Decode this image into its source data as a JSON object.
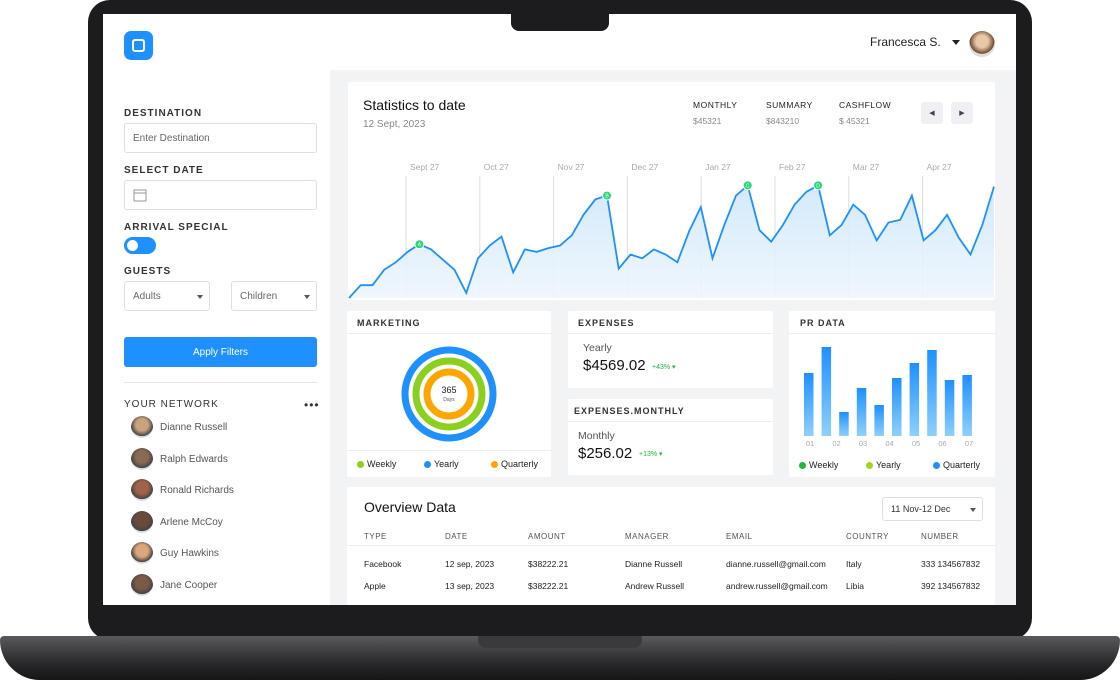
{
  "header": {
    "user": "Francesca S."
  },
  "filters": {
    "destination_label": "DESTINATION",
    "destination_placeholder": "Enter Destination",
    "date_label": "SELECT DATE",
    "arrival_label": "ARRIVAL SPECIAL",
    "guests_label": "GUESTS",
    "adults": "Adults",
    "children": "Children",
    "apply": "Apply Filters"
  },
  "network": {
    "title": "YOUR NETWORK",
    "people": [
      "Dianne Russell",
      "Ralph Edwards",
      "Ronald Richards",
      "Arlene McCoy",
      "Guy Hawkins",
      "Jane Cooper"
    ]
  },
  "statistics": {
    "title": "Statistics to date",
    "date": "12 Sept, 2023",
    "metrics": [
      {
        "label": "MONTHLY",
        "value": "$45321"
      },
      {
        "label": "SUMMARY",
        "value": "$843210"
      },
      {
        "label": "CASHFLOW",
        "value": "$ 45321"
      }
    ],
    "x_labels": [
      "Sept 27",
      "Oct 27",
      "Nov 27",
      "Dec 27",
      "Jan 27",
      "Feb 27",
      "Mar 27",
      "Apr 27"
    ],
    "ylim": [
      0,
      100
    ],
    "values": [
      0,
      10,
      10,
      22,
      28,
      36,
      42,
      38,
      30,
      22,
      4,
      31,
      41,
      48,
      20,
      38,
      36,
      39,
      41,
      49,
      65,
      77,
      80,
      23,
      34,
      31,
      38,
      34,
      28,
      52,
      71,
      31,
      57,
      80,
      88,
      53,
      44,
      57,
      73,
      83,
      88,
      49,
      57,
      73,
      65,
      45,
      59,
      61,
      80,
      45,
      53,
      65,
      47,
      34,
      57,
      87
    ],
    "markers": [
      {
        "index": 6,
        "label": "A"
      },
      {
        "index": 22,
        "label": "B"
      },
      {
        "index": 34,
        "label": "C"
      },
      {
        "index": 40,
        "label": "D"
      }
    ]
  },
  "marketing": {
    "title": "MARKETING",
    "center_value": "365",
    "center_label": "Days",
    "legend": [
      {
        "name": "Weekly",
        "color": "#8bd01f"
      },
      {
        "name": "Yearly",
        "color": "#1e90ff"
      },
      {
        "name": "Quarterly",
        "color": "#ffa500"
      }
    ]
  },
  "expenses": {
    "title": "EXPENSES",
    "period": "Yearly",
    "amount": "$4569.02",
    "change": "+43%"
  },
  "expenses_monthly": {
    "title": "EXPENSES.MONTHLY",
    "period": "Monthly",
    "amount": "$256.02",
    "change": "+13%"
  },
  "pr_data": {
    "title": "PR DATA",
    "ylim": [
      0,
      100
    ],
    "values": [
      63,
      89,
      24,
      48,
      31,
      58,
      73,
      86,
      56,
      61
    ],
    "x_labels": [
      "01",
      "02",
      "03",
      "04",
      "05",
      "06",
      "07"
    ],
    "legend": [
      {
        "name": "Weekly",
        "color": "#1fb53a"
      },
      {
        "name": "Yearly",
        "color": "#a3d32a"
      },
      {
        "name": "Quarterly",
        "color": "#1e90ff"
      }
    ]
  },
  "overview": {
    "title": "Overview Data",
    "range": "11 Nov-12 Dec",
    "columns": [
      "TYPE",
      "DATE",
      "AMOUNT",
      "MANAGER",
      "EMAIL",
      "COUNTRY",
      "NUMBER"
    ],
    "rows": [
      [
        "Facebook",
        "12 sep, 2023",
        "$38222.21",
        "Dianne Russell",
        "dianne.russell@gmail.com",
        "Italy",
        "333 134567832"
      ],
      [
        "Apple",
        "13 sep, 2023",
        "$38222.21",
        "Andrew Russell",
        "andrew.russell@gmail.com",
        "Libia",
        "392 134567832"
      ]
    ]
  }
}
